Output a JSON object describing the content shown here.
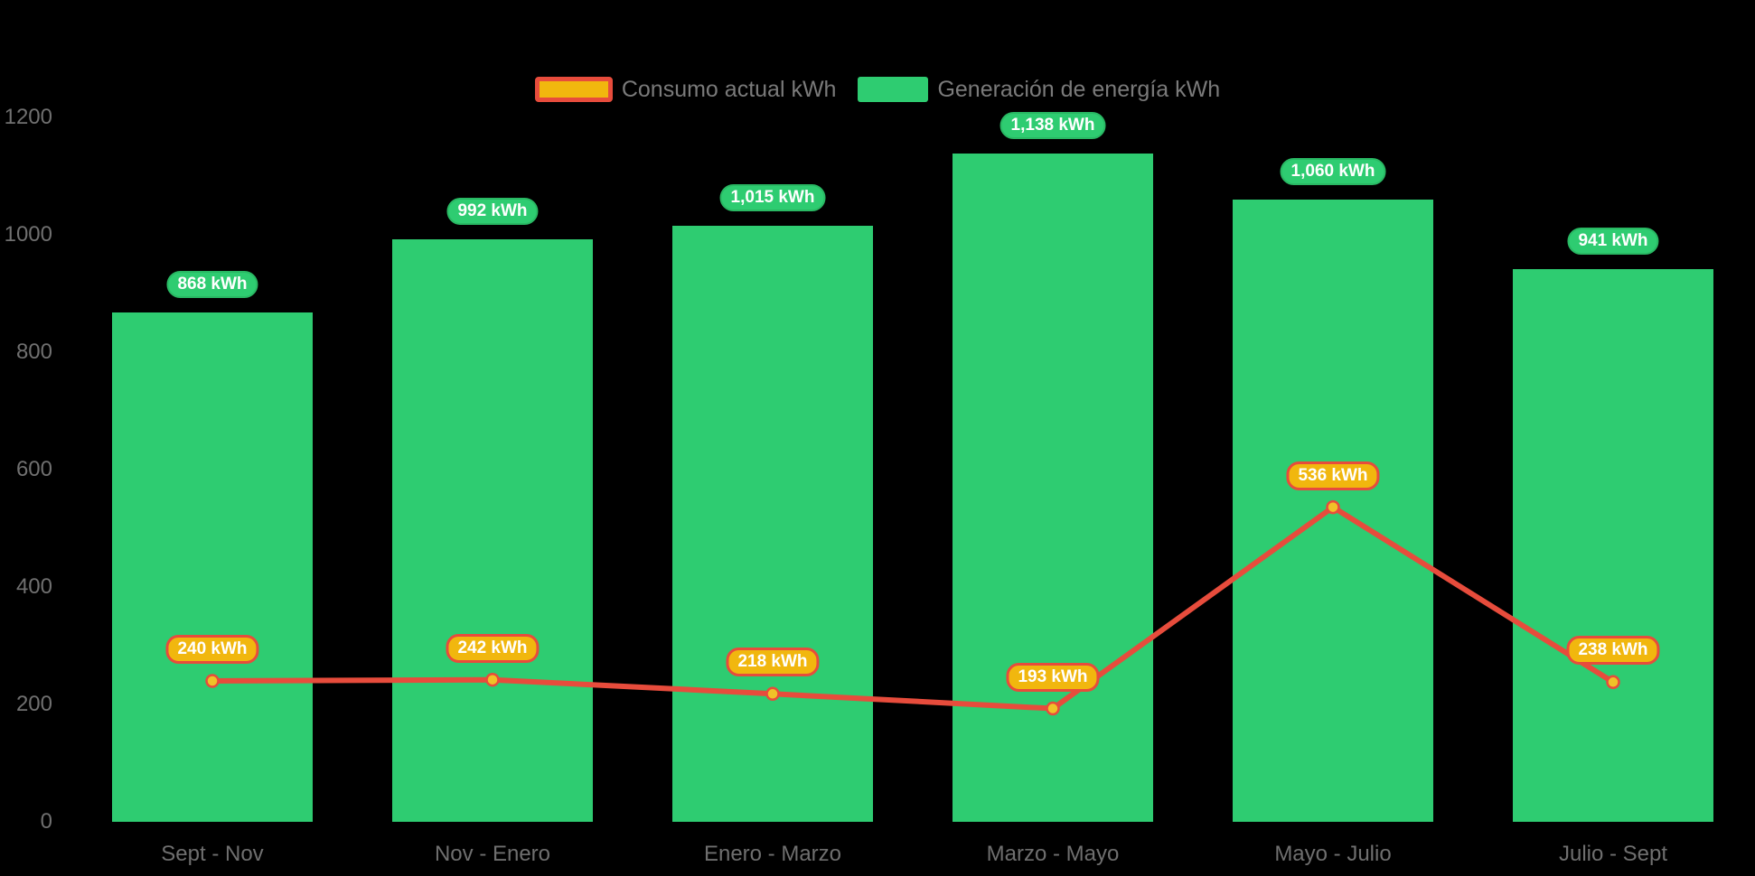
{
  "chart_data": {
    "type": "bar",
    "title": "",
    "categories": [
      "Sept - Nov",
      "Nov - Enero",
      "Enero - Marzo",
      "Marzo - Mayo",
      "Mayo - Julio",
      "Julio - Sept"
    ],
    "series": [
      {
        "name": "Generación de energía kWh",
        "type": "bar",
        "color": "#2ecc71",
        "values": [
          868,
          992,
          1015,
          1138,
          1060,
          941
        ],
        "labels": [
          "868 kWh",
          "992 kWh",
          "1,015 kWh",
          "1,138 kWh",
          "1,060 kWh",
          "941 kWh"
        ]
      },
      {
        "name": "Consumo actual kWh",
        "type": "line",
        "color": "#e74c3c",
        "marker_color": "#f0c228",
        "values": [
          240,
          242,
          218,
          193,
          536,
          238
        ],
        "labels": [
          "240 kWh",
          "242 kWh",
          "218 kWh",
          "193 kWh",
          "536 kWh",
          "238 kWh"
        ]
      }
    ],
    "xlabel": "",
    "ylabel": "",
    "ylim": [
      0,
      1200
    ],
    "yticks": [
      "0",
      "200",
      "400",
      "600",
      "800",
      "1000",
      "1200"
    ],
    "grid": false,
    "legend_position": "top-center",
    "background": "#000000"
  },
  "legend": {
    "consumo_label": "Consumo actual kWh",
    "generacion_label": "Generación de energía kWh"
  },
  "colors": {
    "bar_green": "#2ecc71",
    "pill_green_border": "#29b863",
    "line_red": "#e74c3c",
    "gold": "#f1b70e",
    "marker_gold": "#f0c228",
    "axis_text": "#707070",
    "legend_text": "#7a7a7a"
  }
}
